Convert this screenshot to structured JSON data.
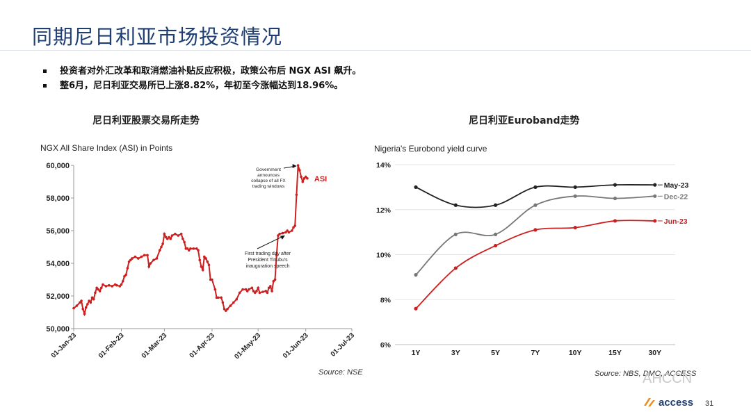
{
  "header": {
    "title": "同期尼日利亚市场投资情况"
  },
  "bullets": [
    "投资者对外汇改革和取消燃油补贴反应积极，政策公布后 NGX ASI 飙升。",
    "整6月，尼日利亚交易所已上涨8.82%，年初至今涨幅达到18.96%。"
  ],
  "left": {
    "subtitle": "尼日利亚股票交易所走势",
    "source": "Source: NSE"
  },
  "right": {
    "subtitle": "尼日利亚Euroband走势",
    "source": "Source: NBS, DMO, ACCESS"
  },
  "watermark": "AHCCN",
  "footer": {
    "brand": "access",
    "page": "31"
  },
  "colors": {
    "title": "#1f3f73",
    "red": "#cc1f1f",
    "gray": "#777777",
    "dark": "#222222",
    "logo_orange": "#f08a1c"
  },
  "chart_data": [
    {
      "type": "line",
      "title": "NGX All Share Index (ASI) in Points",
      "series_label": "ASI",
      "ylim": [
        50000,
        60000
      ],
      "yticks": [
        "50,000",
        "52,000",
        "54,000",
        "56,000",
        "58,000",
        "60,000"
      ],
      "xticks": [
        "01-Jan-23",
        "01-Feb-23",
        "01-Mar-23",
        "01-Apr-23",
        "01-May-23",
        "01-Jun-23",
        "01-Jul-23"
      ],
      "x_domain_days": [
        0,
        181
      ],
      "points_day_value": [
        [
          0,
          51250
        ],
        [
          2,
          51400
        ],
        [
          4,
          51600
        ],
        [
          5,
          51700
        ],
        [
          6,
          51200
        ],
        [
          7,
          50900
        ],
        [
          8,
          51300
        ],
        [
          9,
          51500
        ],
        [
          10,
          51700
        ],
        [
          11,
          51600
        ],
        [
          12,
          51900
        ],
        [
          13,
          51800
        ],
        [
          14,
          52200
        ],
        [
          15,
          52500
        ],
        [
          16,
          52400
        ],
        [
          17,
          52300
        ],
        [
          18,
          52500
        ],
        [
          19,
          52700
        ],
        [
          21,
          52600
        ],
        [
          23,
          52650
        ],
        [
          25,
          52600
        ],
        [
          27,
          52700
        ],
        [
          28,
          52650
        ],
        [
          30,
          52600
        ],
        [
          31,
          52700
        ],
        [
          32,
          52900
        ],
        [
          33,
          53200
        ],
        [
          34,
          53300
        ],
        [
          35,
          53700
        ],
        [
          36,
          54100
        ],
        [
          37,
          54200
        ],
        [
          38,
          54300
        ],
        [
          40,
          54400
        ],
        [
          42,
          54300
        ],
        [
          44,
          54400
        ],
        [
          46,
          54500
        ],
        [
          48,
          54500
        ],
        [
          49,
          53800
        ],
        [
          50,
          54000
        ],
        [
          52,
          54200
        ],
        [
          54,
          54300
        ],
        [
          56,
          54800
        ],
        [
          57,
          55000
        ],
        [
          58,
          55200
        ],
        [
          59,
          55800
        ],
        [
          60,
          55600
        ],
        [
          61,
          55500
        ],
        [
          62,
          55600
        ],
        [
          63,
          55500
        ],
        [
          64,
          55700
        ],
        [
          66,
          55800
        ],
        [
          68,
          55700
        ],
        [
          70,
          55800
        ],
        [
          71,
          55500
        ],
        [
          72,
          55300
        ],
        [
          73,
          54900
        ],
        [
          74,
          54900
        ],
        [
          75,
          54800
        ],
        [
          76,
          54900
        ],
        [
          78,
          54900
        ],
        [
          80,
          54900
        ],
        [
          81,
          54800
        ],
        [
          82,
          54200
        ],
        [
          83,
          53800
        ],
        [
          84,
          53600
        ],
        [
          85,
          54400
        ],
        [
          86,
          54300
        ],
        [
          87,
          54100
        ],
        [
          88,
          53900
        ],
        [
          89,
          53000
        ],
        [
          90,
          53000
        ],
        [
          92,
          52400
        ],
        [
          93,
          51900
        ],
        [
          94,
          51900
        ],
        [
          96,
          51900
        ],
        [
          97,
          51600
        ],
        [
          98,
          51200
        ],
        [
          99,
          51100
        ],
        [
          100,
          51200
        ],
        [
          102,
          51400
        ],
        [
          104,
          51600
        ],
        [
          106,
          51800
        ],
        [
          108,
          52200
        ],
        [
          110,
          52400
        ],
        [
          112,
          52400
        ],
        [
          113,
          52300
        ],
        [
          114,
          52400
        ],
        [
          116,
          52500
        ],
        [
          117,
          52300
        ],
        [
          118,
          52200
        ],
        [
          119,
          52300
        ],
        [
          120,
          52500
        ],
        [
          121,
          52200
        ],
        [
          123,
          52250
        ],
        [
          125,
          52300
        ],
        [
          126,
          52200
        ],
        [
          127,
          52500
        ],
        [
          128,
          52600
        ],
        [
          129,
          52300
        ],
        [
          130,
          52900
        ],
        [
          131,
          53000
        ],
        [
          131,
          53000
        ],
        [
          132,
          54500
        ],
        [
          133,
          55700
        ],
        [
          134,
          55800
        ],
        [
          136,
          55850
        ],
        [
          138,
          55900
        ],
        [
          139,
          56000
        ],
        [
          140,
          55900
        ],
        [
          142,
          56000
        ],
        [
          143,
          56200
        ],
        [
          144,
          56300
        ],
        [
          145,
          58200
        ],
        [
          146,
          60000
        ],
        [
          147,
          59700
        ],
        [
          148,
          59300
        ],
        [
          149,
          59000
        ],
        [
          150,
          59200
        ],
        [
          151,
          59300
        ],
        [
          152,
          59200
        ]
      ],
      "annotations": [
        {
          "text_lines": [
            "Government",
            "announces",
            "collapse of all FX",
            "trading windows"
          ],
          "target_day": 146,
          "target_value": 60000
        },
        {
          "text_lines": [
            "First trading day after",
            "President Tinubu's",
            "inauguration speech"
          ],
          "target_day": 133,
          "target_value": 55800
        }
      ]
    },
    {
      "type": "line",
      "title": "Nigeria's Eurobond yield curve",
      "categories": [
        "1Y",
        "3Y",
        "5Y",
        "7Y",
        "10Y",
        "15Y",
        "30Y"
      ],
      "ylim": [
        6,
        14
      ],
      "yticks": [
        "6%",
        "8%",
        "10%",
        "12%",
        "14%"
      ],
      "series": [
        {
          "name": "May-23",
          "color": "#222222",
          "values": [
            13.0,
            12.2,
            12.2,
            13.0,
            13.0,
            13.1,
            13.1
          ]
        },
        {
          "name": "Dec-22",
          "color": "#777777",
          "values": [
            9.1,
            10.9,
            10.9,
            12.2,
            12.6,
            12.5,
            12.6
          ]
        },
        {
          "name": "Jun-23",
          "color": "#cc1f1f",
          "values": [
            7.6,
            9.4,
            10.4,
            11.1,
            11.2,
            11.5,
            11.5
          ]
        }
      ]
    }
  ]
}
